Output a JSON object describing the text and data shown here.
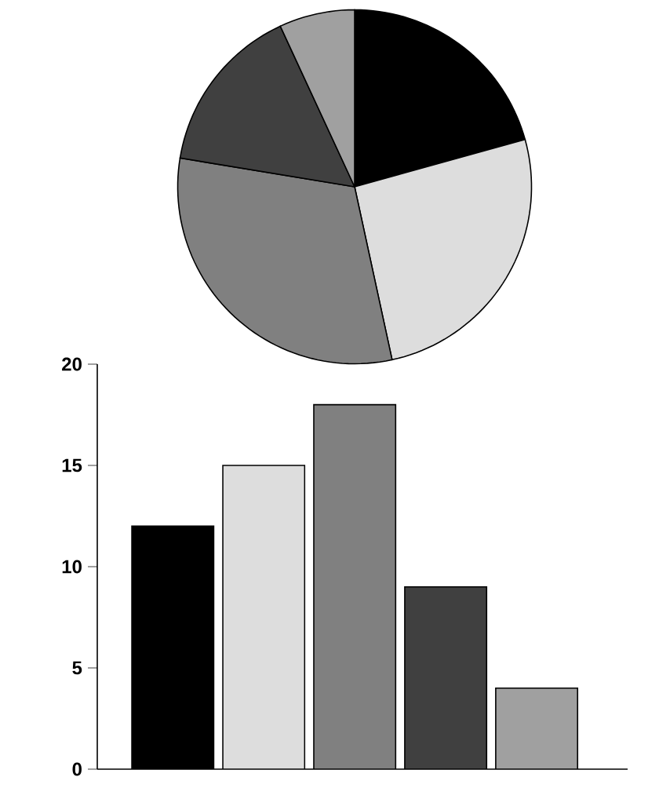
{
  "chart_data": [
    {
      "type": "pie",
      "categories": [
        null,
        null,
        null,
        null,
        null
      ],
      "values": [
        20.7,
        25.9,
        31.0,
        15.5,
        6.9
      ],
      "colors": [
        "#000000",
        "#dddddd",
        "#808080",
        "#404040",
        "#a0a0a0"
      ]
    },
    {
      "type": "bar",
      "categories": [
        null,
        null,
        null,
        null,
        null
      ],
      "values": [
        12,
        15,
        18,
        9,
        4
      ],
      "colors": [
        "#000000",
        "#dddddd",
        "#808080",
        "#404040",
        "#a0a0a0"
      ],
      "ylim": [
        0,
        20
      ],
      "yticks": [
        0,
        5,
        10,
        15,
        20
      ]
    }
  ]
}
